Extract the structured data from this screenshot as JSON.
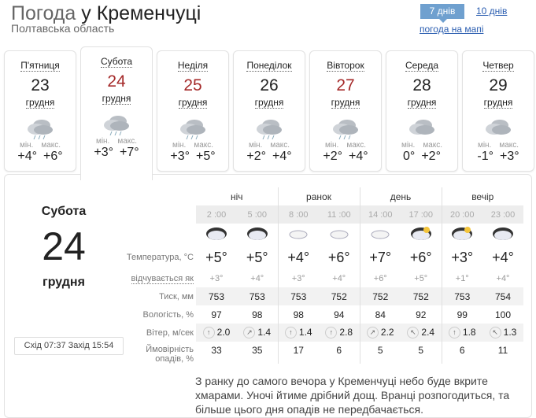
{
  "header": {
    "title_gray": "Погода",
    "title_main": "у Кременчуці",
    "region": "Полтавська область",
    "tab_7": "7 днів",
    "tab_10": "10 днів",
    "map_link": "погода на мапі"
  },
  "days": [
    {
      "name": "П'ятниця",
      "num": "23",
      "month": "грудня",
      "min_label": "мін.",
      "max_label": "макс.",
      "min": "+4°",
      "max": "+6°",
      "red": false,
      "icon": "cloud-rain-icon"
    },
    {
      "name": "Субота",
      "num": "24",
      "month": "грудня",
      "min_label": "мін.",
      "max_label": "макс.",
      "min": "+3°",
      "max": "+7°",
      "red": true,
      "icon": "cloud-rain-icon"
    },
    {
      "name": "Неділя",
      "num": "25",
      "month": "грудня",
      "min_label": "мін.",
      "max_label": "макс.",
      "min": "+3°",
      "max": "+5°",
      "red": true,
      "icon": "cloud-rain-icon"
    },
    {
      "name": "Понеділок",
      "num": "26",
      "month": "грудня",
      "min_label": "мін.",
      "max_label": "макс.",
      "min": "+2°",
      "max": "+4°",
      "red": false,
      "icon": "cloud-rain-icon"
    },
    {
      "name": "Вівторок",
      "num": "27",
      "month": "грудня",
      "min_label": "мін.",
      "max_label": "макс.",
      "min": "+2°",
      "max": "+4°",
      "red": true,
      "icon": "cloud-rain-icon"
    },
    {
      "name": "Середа",
      "num": "28",
      "month": "грудня",
      "min_label": "мін.",
      "max_label": "макс.",
      "min": "0°",
      "max": "+2°",
      "red": false,
      "icon": "cloud-icon"
    },
    {
      "name": "Четвер",
      "num": "29",
      "month": "грудня",
      "min_label": "мін.",
      "max_label": "макс.",
      "min": "-1°",
      "max": "+3°",
      "red": false,
      "icon": "cloud-icon"
    }
  ],
  "detail": {
    "day_name": "Субота",
    "day_num": "24",
    "month": "грудня",
    "sun": {
      "rise_label": "Схід",
      "rise": "07:37",
      "set_label": "Захід",
      "set": "15:54"
    },
    "groups": [
      "ніч",
      "ранок",
      "день",
      "вечір"
    ],
    "times": [
      "2 :00",
      "5 :00",
      "8 :00",
      "11 :00",
      "14 :00",
      "17 :00",
      "20 :00",
      "23 :00"
    ],
    "labels": {
      "temp": "Температура, °C",
      "feel": "відчувається як",
      "pressure": "Тиск, мм",
      "humidity": "Вологість, %",
      "wind": "Вітер, м/сек",
      "precip1": "Ймовірність",
      "precip2": "опадів, %"
    },
    "temp": [
      "+5°",
      "+5°",
      "+4°",
      "+6°",
      "+7°",
      "+6°",
      "+3°",
      "+4°"
    ],
    "feel": [
      "+3°",
      "+4°",
      "+3°",
      "+4°",
      "+6°",
      "+5°",
      "+1°",
      "+4°"
    ],
    "pressure": [
      "753",
      "753",
      "753",
      "752",
      "752",
      "752",
      "753",
      "754"
    ],
    "humidity": [
      "97",
      "98",
      "98",
      "94",
      "84",
      "92",
      "99",
      "100"
    ],
    "wind": [
      {
        "dir": "↑",
        "v": "2.0"
      },
      {
        "dir": "↗",
        "v": "1.4"
      },
      {
        "dir": "↑",
        "v": "1.4"
      },
      {
        "dir": "↑",
        "v": "2.8"
      },
      {
        "dir": "↗",
        "v": "2.2"
      },
      {
        "dir": "↖",
        "v": "2.4"
      },
      {
        "dir": "↑",
        "v": "1.8"
      },
      {
        "dir": "↖",
        "v": "1.3"
      }
    ],
    "precip": [
      "33",
      "35",
      "17",
      "6",
      "5",
      "5",
      "6",
      "11"
    ],
    "description": "З ранку до самого вечора у Кременчуці небо буде вкрите хмарами. Уночі йтиме дрібний дощ. Вранці розпогодиться, та більше цього дня опадів не передбачається."
  }
}
